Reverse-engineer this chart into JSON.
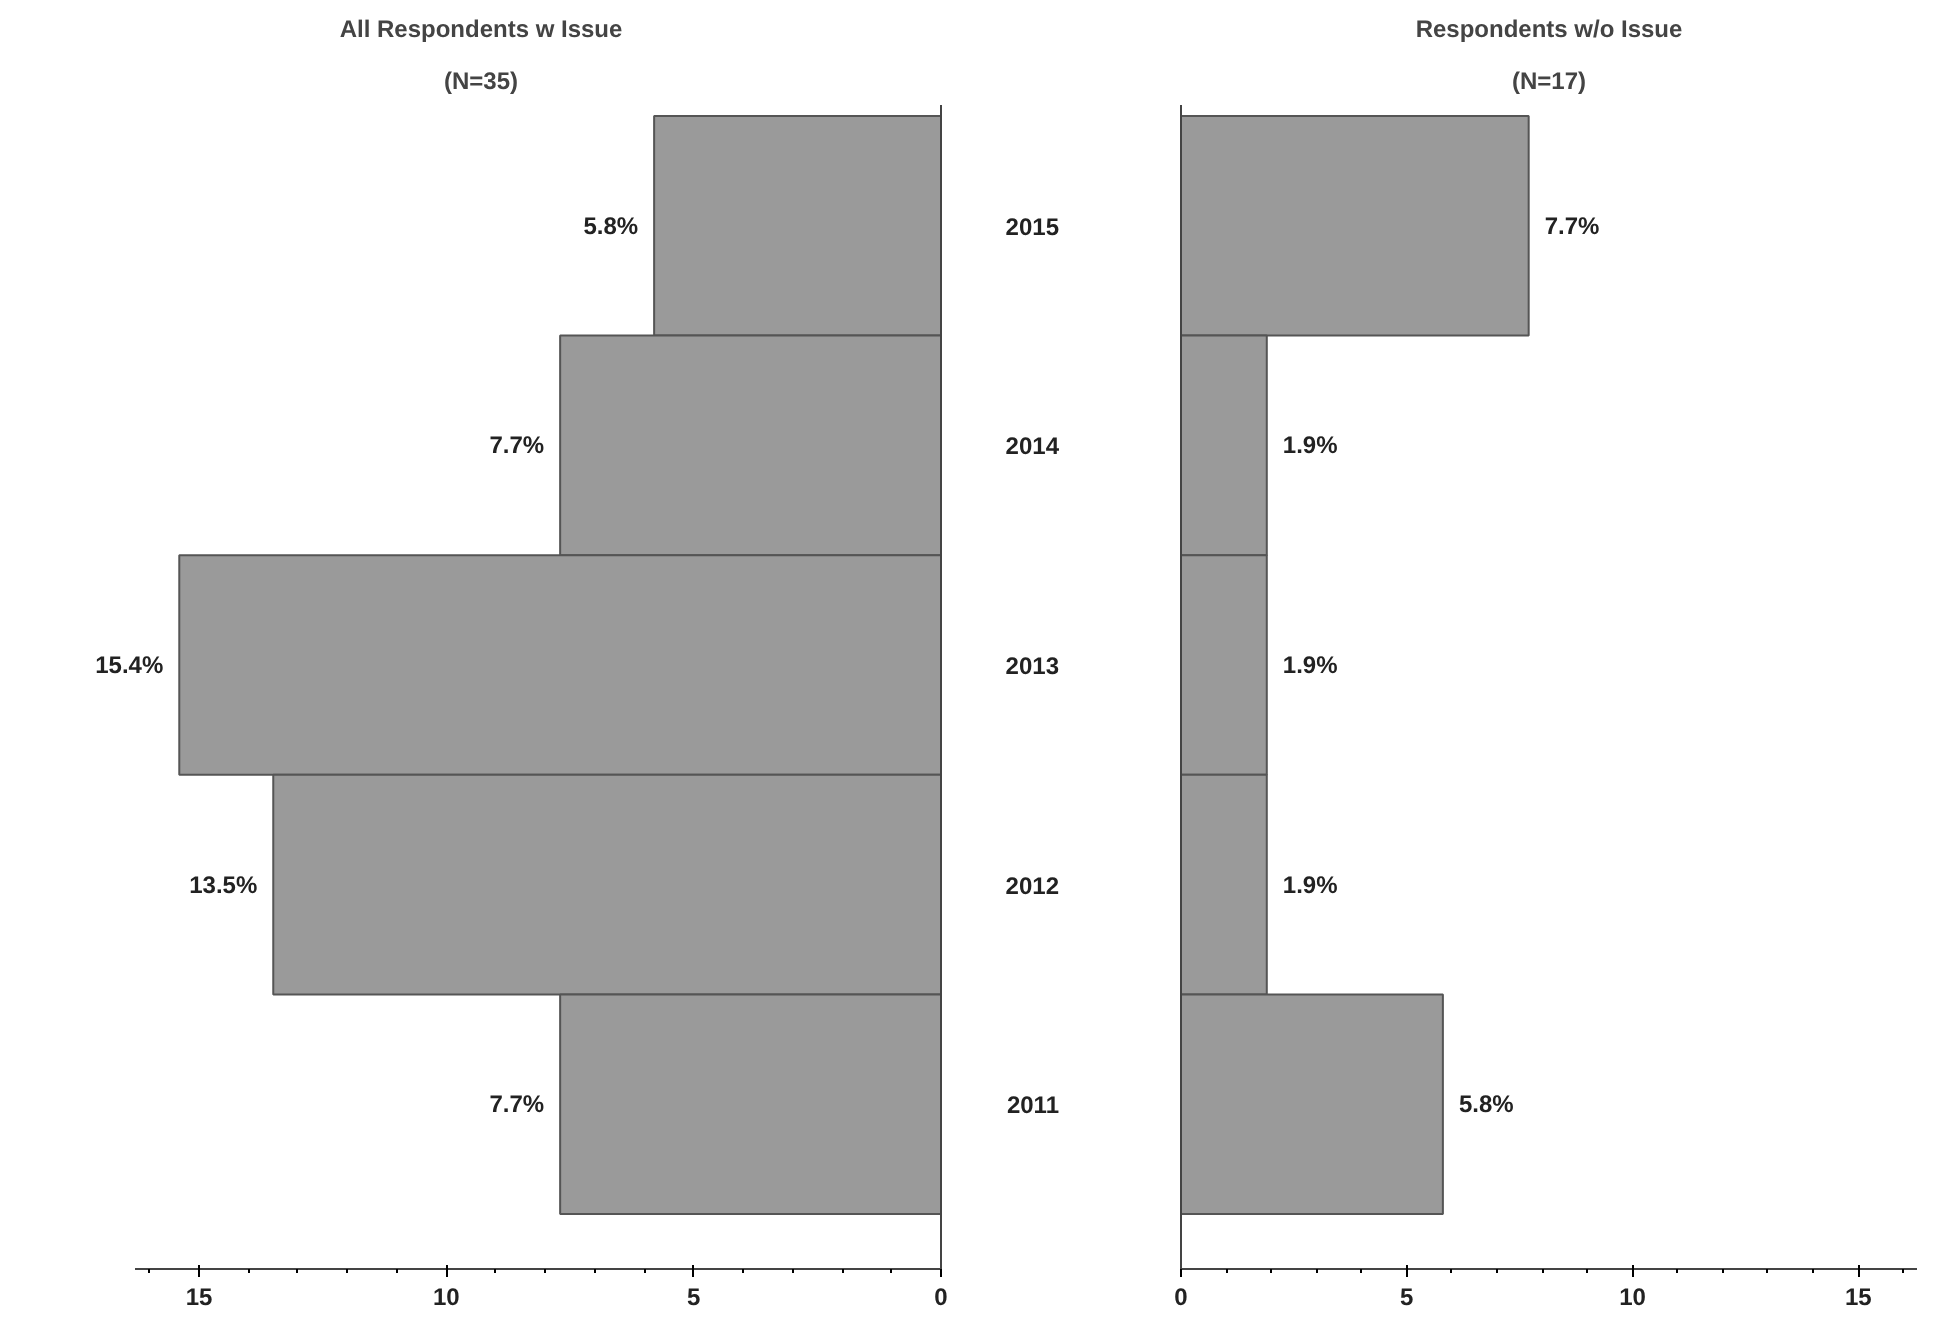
{
  "chart_data": [
    {
      "type": "bar",
      "orientation": "horizontal",
      "title": "All Respondents w Issue",
      "subtitle": "(N=35)",
      "categories": [
        "2015",
        "2014",
        "2013",
        "2012",
        "2011"
      ],
      "values": [
        5.8,
        7.7,
        15.4,
        13.5,
        7.7
      ],
      "value_labels": [
        "5.8%",
        "7.7%",
        "15.4%",
        "13.5%",
        "7.7%"
      ],
      "color": "#9a9a9a",
      "xlim": [
        16.3,
        0
      ],
      "xticks": [
        15,
        10,
        5,
        0
      ],
      "tick_labels": "x",
      "grid": false
    },
    {
      "type": "bar",
      "orientation": "horizontal",
      "title": "Respondents w/o Issue",
      "subtitle": "(N=17)",
      "categories": [
        "2015",
        "2014",
        "2013",
        "2012",
        "2011"
      ],
      "values": [
        7.7,
        1.9,
        1.9,
        1.9,
        5.8
      ],
      "value_labels": [
        "7.7%",
        "1.9%",
        "1.9%",
        "1.9%",
        "5.8%"
      ],
      "color": "#9a9a9a",
      "xlim": [
        0,
        16.3
      ],
      "xticks": [
        0,
        5,
        10,
        15
      ],
      "grid": false
    }
  ]
}
